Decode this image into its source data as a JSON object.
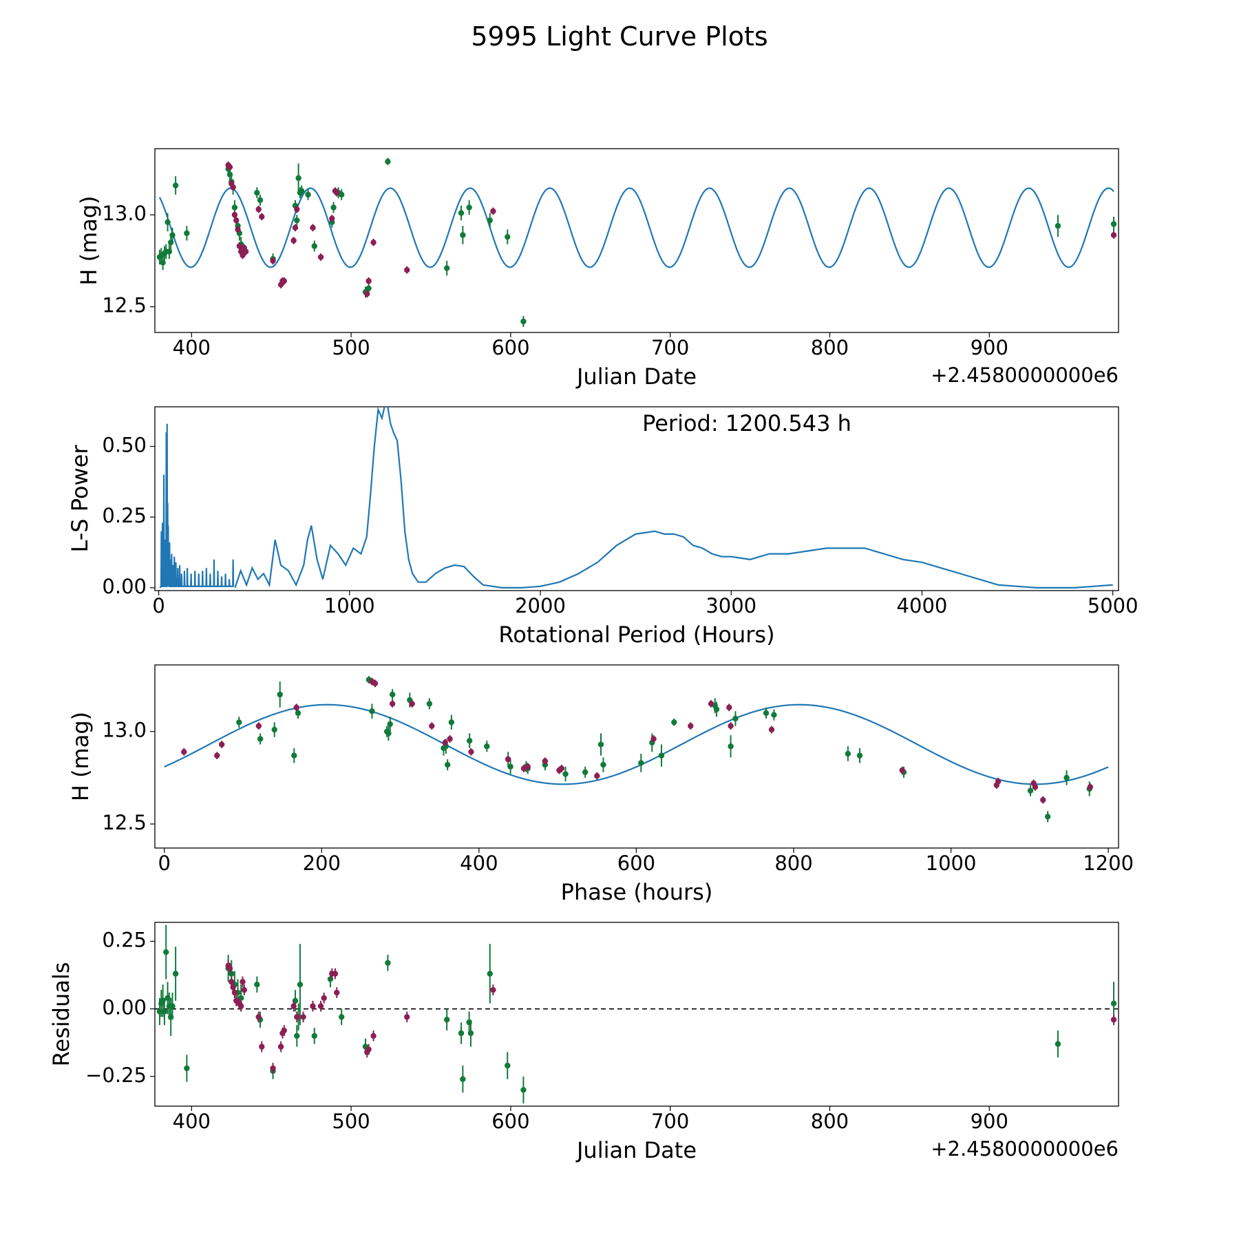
{
  "figure": {
    "suptitle": "5995 Light Curve Plots"
  },
  "colors": {
    "model": "#1f77b4",
    "groupA": "#117a3a",
    "groupB": "#8c1f54"
  },
  "chart_data": [
    {
      "type": "scatter",
      "title": "",
      "xlabel": "Julian Date",
      "ylabel": "H (mag)",
      "offset_label": "+2.4580000000e6",
      "xlim": [
        377,
        981
      ],
      "ylim": [
        12.36,
        13.36
      ],
      "xticks": [
        400,
        500,
        600,
        700,
        800,
        900
      ],
      "xtick_labels": [
        "400",
        "500",
        "600",
        "700",
        "800",
        "900"
      ],
      "yticks": [
        12.5,
        13.0
      ],
      "ytick_labels": [
        "12.5",
        "13.0"
      ],
      "model": {
        "period_days": 50.02,
        "mean": 12.93,
        "amplitude": 0.215,
        "peak_x": 424.5
      },
      "green": {
        "x": [
          380,
          381,
          382,
          383,
          384,
          385,
          386,
          387,
          388,
          390,
          397,
          423,
          424,
          425,
          426,
          427,
          429,
          430,
          431,
          441,
          443,
          451,
          465,
          466,
          467,
          468,
          469,
          473,
          477,
          488,
          489,
          492,
          494,
          509,
          511,
          523,
          560,
          569,
          570,
          574,
          587,
          598,
          608,
          943,
          978
        ],
        "y": [
          12.77,
          12.78,
          12.74,
          12.79,
          12.8,
          12.96,
          12.8,
          12.85,
          12.89,
          13.16,
          12.9,
          13.25,
          13.22,
          13.18,
          13.15,
          13.04,
          12.94,
          12.9,
          12.84,
          13.12,
          13.08,
          12.76,
          13.05,
          12.97,
          13.2,
          13.12,
          13.13,
          13.11,
          12.83,
          12.96,
          13.04,
          13.12,
          13.11,
          12.58,
          12.6,
          13.29,
          12.71,
          13.01,
          12.89,
          13.04,
          12.97,
          12.88,
          12.42,
          12.94,
          12.95
        ],
        "err": [
          0.04,
          0.04,
          0.04,
          0.04,
          0.04,
          0.05,
          0.04,
          0.04,
          0.04,
          0.05,
          0.04,
          0.04,
          0.04,
          0.04,
          0.04,
          0.04,
          0.04,
          0.04,
          0.04,
          0.03,
          0.03,
          0.03,
          0.03,
          0.03,
          0.08,
          0.03,
          0.03,
          0.03,
          0.03,
          0.03,
          0.03,
          0.03,
          0.03,
          0.03,
          0.03,
          0.02,
          0.04,
          0.04,
          0.05,
          0.04,
          0.04,
          0.04,
          0.03,
          0.06,
          0.04
        ]
      },
      "magenta": {
        "x": [
          423,
          424,
          425,
          426,
          427,
          428,
          429,
          430,
          431,
          432,
          433,
          434,
          442,
          444,
          451,
          456,
          457,
          458,
          464,
          465,
          466,
          476,
          481,
          488,
          490,
          491,
          510,
          511,
          514,
          535,
          589,
          978
        ],
        "y": [
          13.27,
          13.26,
          13.17,
          13.15,
          13.0,
          12.97,
          12.92,
          12.83,
          12.8,
          12.78,
          12.82,
          12.8,
          13.03,
          12.99,
          12.75,
          12.62,
          12.64,
          12.64,
          12.86,
          12.93,
          13.03,
          12.93,
          12.77,
          12.98,
          13.13,
          13.12,
          12.57,
          12.64,
          12.85,
          12.7,
          13.02,
          12.89
        ]
      }
    },
    {
      "type": "line",
      "title": "",
      "xlabel": "Rotational Period (Hours)",
      "ylabel": "L-S Power",
      "annotation": "Period: 1200.543 h",
      "xlim": [
        -20,
        5030
      ],
      "ylim": [
        -0.01,
        0.64
      ],
      "xticks": [
        0,
        1000,
        2000,
        3000,
        4000,
        5000
      ],
      "xtick_labels": [
        "0",
        "1000",
        "2000",
        "3000",
        "4000",
        "5000"
      ],
      "yticks": [
        0.0,
        0.25,
        0.5
      ],
      "ytick_labels": [
        "0.00",
        "0.25",
        "0.50"
      ],
      "smooth_x": [
        400,
        430,
        460,
        490,
        520,
        550,
        580,
        610,
        640,
        680,
        720,
        760,
        780,
        800,
        830,
        860,
        900,
        940,
        980,
        1020,
        1060,
        1090,
        1110,
        1130,
        1150,
        1170,
        1190,
        1200,
        1215,
        1230,
        1250,
        1270,
        1290,
        1310,
        1330,
        1360,
        1400,
        1450,
        1500,
        1550,
        1600,
        1650,
        1700,
        1750,
        1800,
        1900,
        2000,
        2100,
        2200,
        2300,
        2400,
        2500,
        2600,
        2650,
        2700,
        2750,
        2800,
        2850,
        2900,
        2950,
        3000,
        3050,
        3100,
        3150,
        3200,
        3300,
        3400,
        3500,
        3600,
        3700,
        3800,
        3900,
        4000,
        4100,
        4200,
        4300,
        4400,
        4500,
        4600,
        4700,
        4800,
        4900,
        5000
      ],
      "smooth_y": [
        0.0,
        0.06,
        0.01,
        0.07,
        0.03,
        0.05,
        0.01,
        0.17,
        0.08,
        0.06,
        0.01,
        0.08,
        0.17,
        0.22,
        0.1,
        0.03,
        0.15,
        0.12,
        0.08,
        0.14,
        0.12,
        0.18,
        0.33,
        0.5,
        0.63,
        0.6,
        0.66,
        0.64,
        0.58,
        0.55,
        0.52,
        0.38,
        0.2,
        0.1,
        0.05,
        0.02,
        0.02,
        0.05,
        0.07,
        0.08,
        0.075,
        0.04,
        0.01,
        0.005,
        0.0,
        0.0,
        0.005,
        0.02,
        0.05,
        0.09,
        0.15,
        0.19,
        0.2,
        0.19,
        0.19,
        0.18,
        0.15,
        0.14,
        0.12,
        0.11,
        0.11,
        0.105,
        0.1,
        0.11,
        0.12,
        0.12,
        0.13,
        0.14,
        0.14,
        0.14,
        0.12,
        0.1,
        0.09,
        0.07,
        0.05,
        0.03,
        0.01,
        0.005,
        0.0,
        0.0,
        0.0,
        0.005,
        0.01
      ],
      "spike_x": [
        14,
        20,
        27,
        34,
        40,
        44,
        47,
        50,
        53,
        57,
        62,
        68,
        75,
        82,
        90,
        100,
        110,
        120,
        135,
        150,
        170,
        190,
        210,
        230,
        250,
        270,
        290,
        310,
        330,
        350,
        370,
        390
      ],
      "spike_y": [
        0.2,
        0.23,
        0.4,
        0.17,
        0.55,
        0.58,
        0.3,
        0.22,
        0.12,
        0.16,
        0.1,
        0.12,
        0.08,
        0.11,
        0.09,
        0.07,
        0.08,
        0.05,
        0.06,
        0.07,
        0.05,
        0.06,
        0.05,
        0.06,
        0.07,
        0.05,
        0.1,
        0.06,
        0.04,
        0.05,
        0.03,
        0.1
      ]
    },
    {
      "type": "scatter",
      "title": "",
      "xlabel": "Phase (hours)",
      "ylabel": "H (mag)",
      "xlim": [
        -12,
        1213
      ],
      "ylim": [
        12.37,
        13.36
      ],
      "xticks": [
        0,
        200,
        400,
        600,
        800,
        1000,
        1200
      ],
      "xtick_labels": [
        "0",
        "200",
        "400",
        "600",
        "800",
        "1000",
        "1200"
      ],
      "yticks": [
        12.5,
        13.0
      ],
      "ytick_labels": [
        "12.5",
        "13.0"
      ],
      "model": {
        "period_hours": 600.27,
        "mean": 12.93,
        "amplitude": 0.215,
        "peak_x": 207
      },
      "green": {
        "x": [
          95,
          122,
          140,
          147,
          165,
          170,
          260,
          264,
          283,
          285,
          287,
          290,
          312,
          337,
          355,
          358,
          360,
          365,
          388,
          410,
          437,
          440,
          460,
          462,
          484,
          510,
          535,
          555,
          558,
          606,
          620,
          632,
          648,
          700,
          702,
          720,
          726,
          765,
          775,
          869,
          884,
          940,
          1101,
          1123,
          1147,
          1176
        ],
        "y": [
          13.05,
          12.96,
          13.01,
          13.2,
          12.87,
          13.1,
          13.28,
          13.11,
          13.0,
          12.99,
          13.04,
          13.2,
          13.17,
          13.15,
          12.91,
          12.92,
          12.82,
          13.05,
          12.95,
          12.92,
          12.85,
          12.81,
          12.81,
          12.8,
          12.82,
          12.77,
          12.78,
          12.93,
          12.82,
          12.83,
          12.94,
          12.87,
          13.05,
          13.14,
          13.12,
          12.92,
          13.07,
          13.1,
          13.09,
          12.88,
          12.87,
          12.78,
          12.68,
          12.54,
          12.75,
          12.69
        ],
        "err": [
          0.03,
          0.03,
          0.04,
          0.07,
          0.04,
          0.03,
          0.02,
          0.04,
          0.03,
          0.04,
          0.04,
          0.03,
          0.04,
          0.03,
          0.04,
          0.04,
          0.03,
          0.04,
          0.04,
          0.03,
          0.04,
          0.04,
          0.03,
          0.03,
          0.03,
          0.04,
          0.03,
          0.06,
          0.04,
          0.05,
          0.05,
          0.06,
          0.02,
          0.04,
          0.04,
          0.06,
          0.04,
          0.03,
          0.03,
          0.04,
          0.04,
          0.03,
          0.03,
          0.03,
          0.04,
          0.04
        ]
      },
      "magenta": {
        "x": [
          25,
          67,
          73,
          120,
          168,
          264,
          268,
          290,
          315,
          340,
          357,
          363,
          390,
          437,
          457,
          462,
          484,
          502,
          505,
          550,
          622,
          669,
          695,
          718,
          720,
          772,
          938,
          1058,
          1060,
          1105,
          1107,
          1117,
          1177
        ],
        "y": [
          12.89,
          12.87,
          12.93,
          13.03,
          13.13,
          13.27,
          13.26,
          13.15,
          13.15,
          13.03,
          12.94,
          12.96,
          12.89,
          12.85,
          12.8,
          12.81,
          12.84,
          12.79,
          12.8,
          12.76,
          12.96,
          13.03,
          13.15,
          13.13,
          13.03,
          13.01,
          12.79,
          12.71,
          12.73,
          12.72,
          12.7,
          12.63,
          12.7
        ]
      }
    },
    {
      "type": "scatter",
      "title": "",
      "xlabel": "Julian Date",
      "ylabel": "Residuals",
      "offset_label": "+2.4580000000e6",
      "xlim": [
        377,
        981
      ],
      "ylim": [
        -0.36,
        0.32
      ],
      "xticks": [
        400,
        500,
        600,
        700,
        800,
        900
      ],
      "xtick_labels": [
        "400",
        "500",
        "600",
        "700",
        "800",
        "900"
      ],
      "yticks": [
        -0.25,
        0.0,
        0.25
      ],
      "ytick_labels": [
        "−0.25",
        "0.00",
        "0.25"
      ],
      "reference_line": 0.0,
      "green": {
        "x": [
          380,
          381,
          382,
          383,
          384,
          385,
          386,
          387,
          388,
          390,
          397,
          423,
          425,
          427,
          429,
          431,
          441,
          443,
          451,
          465,
          466,
          467,
          468,
          477,
          487,
          494,
          509,
          523,
          560,
          569,
          570,
          574,
          575,
          587,
          598,
          608,
          943,
          978
        ],
        "y": [
          -0.01,
          0.02,
          0.03,
          -0.01,
          0.21,
          0.04,
          0.01,
          -0.03,
          0.01,
          0.13,
          -0.22,
          0.15,
          0.13,
          0.09,
          0.06,
          0.04,
          0.09,
          -0.04,
          -0.23,
          0.03,
          -0.1,
          -0.03,
          0.09,
          -0.1,
          0.11,
          -0.03,
          -0.14,
          0.17,
          -0.04,
          -0.09,
          -0.26,
          -0.05,
          -0.09,
          0.13,
          -0.21,
          -0.3,
          -0.13,
          0.02
        ],
        "err": [
          0.05,
          0.05,
          0.06,
          0.05,
          0.1,
          0.06,
          0.05,
          0.07,
          0.05,
          0.1,
          0.05,
          0.05,
          0.05,
          0.05,
          0.05,
          0.05,
          0.03,
          0.03,
          0.03,
          0.04,
          0.04,
          0.05,
          0.15,
          0.03,
          0.03,
          0.03,
          0.03,
          0.03,
          0.04,
          0.04,
          0.05,
          0.04,
          0.05,
          0.11,
          0.05,
          0.05,
          0.05,
          0.08
        ]
      },
      "magenta": {
        "x": [
          423,
          424,
          425,
          426,
          427,
          428,
          430,
          431,
          432,
          433,
          442,
          444,
          451,
          456,
          457,
          458,
          464,
          466,
          470,
          476,
          481,
          483,
          488,
          490,
          491,
          510,
          511,
          514,
          535,
          589,
          978
        ],
        "y": [
          0.16,
          0.15,
          0.1,
          0.08,
          0.06,
          0.03,
          0.02,
          0.01,
          0.1,
          0.07,
          -0.03,
          -0.14,
          -0.22,
          -0.14,
          -0.09,
          -0.08,
          0.01,
          -0.03,
          -0.03,
          0.01,
          0.01,
          0.04,
          0.13,
          0.13,
          0.06,
          -0.16,
          -0.15,
          -0.1,
          -0.03,
          0.07,
          -0.04
        ]
      }
    }
  ]
}
